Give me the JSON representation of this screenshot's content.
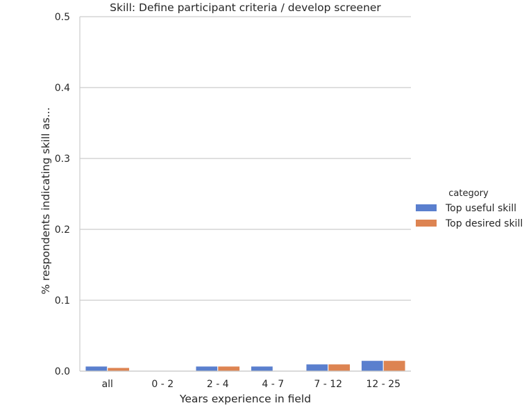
{
  "chart_data": {
    "type": "bar",
    "title": "Skill: Define participant criteria / develop screener",
    "xlabel": "Years experience in field",
    "ylabel": "% respondents indicating skill as...",
    "categories": [
      "all",
      "0 - 2",
      "2 - 4",
      "4 - 7",
      "7 - 12",
      "12 - 25"
    ],
    "series": [
      {
        "name": "Top useful skill",
        "color": "#5a7fce",
        "values": [
          0.007,
          0.0,
          0.007,
          0.007,
          0.01,
          0.015
        ]
      },
      {
        "name": "Top desired skill",
        "color": "#dd8452",
        "values": [
          0.005,
          0.0,
          0.007,
          0.0,
          0.01,
          0.015
        ]
      }
    ],
    "ylim": [
      0,
      0.5
    ],
    "yticks": [
      "0.0",
      "0.1",
      "0.2",
      "0.3",
      "0.4",
      "0.5"
    ],
    "grid": "horizontal",
    "legend": {
      "title": "category",
      "placement": "right"
    }
  }
}
